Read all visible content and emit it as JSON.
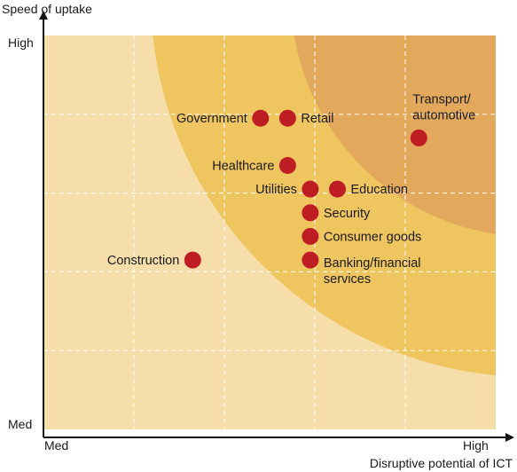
{
  "chart_data": {
    "type": "scatter",
    "title": "",
    "xlabel": "Disruptive potential of ICT",
    "ylabel": "Speed of uptake",
    "xlim": [
      0,
      10
    ],
    "ylim": [
      0,
      10
    ],
    "x_tick_labels": [
      {
        "x": 0,
        "label": "Med"
      },
      {
        "x": 10,
        "label": "High"
      }
    ],
    "y_tick_labels": [
      {
        "y": 0,
        "label": "Med"
      },
      {
        "y": 10,
        "label": "High"
      }
    ],
    "grid": true,
    "zones": [
      "light",
      "medium",
      "dark"
    ],
    "colors": {
      "background": "#f5deaa",
      "zone_medium": "#efc55f",
      "zone_dark": "#e2a85c",
      "point": "#be1e23",
      "grid": "#ffffff",
      "axis": "#111111"
    },
    "points": [
      {
        "name": "Transport/\nautomotive",
        "x": 8.3,
        "y": 7.4,
        "label_pos": "above-right"
      },
      {
        "name": "Government",
        "x": 4.8,
        "y": 7.9,
        "label_pos": "left"
      },
      {
        "name": "Retail",
        "x": 5.4,
        "y": 7.9,
        "label_pos": "right"
      },
      {
        "name": "Healthcare",
        "x": 5.4,
        "y": 6.7,
        "label_pos": "left"
      },
      {
        "name": "Utilities",
        "x": 5.9,
        "y": 6.1,
        "label_pos": "left"
      },
      {
        "name": "Education",
        "x": 6.5,
        "y": 6.1,
        "label_pos": "right"
      },
      {
        "name": "Security",
        "x": 5.9,
        "y": 5.5,
        "label_pos": "right"
      },
      {
        "name": "Consumer goods",
        "x": 5.9,
        "y": 4.9,
        "label_pos": "right"
      },
      {
        "name": "Banking/financial\nservices",
        "x": 5.9,
        "y": 4.3,
        "label_pos": "right-below"
      },
      {
        "name": "Construction",
        "x": 3.3,
        "y": 4.3,
        "label_pos": "left"
      }
    ]
  }
}
